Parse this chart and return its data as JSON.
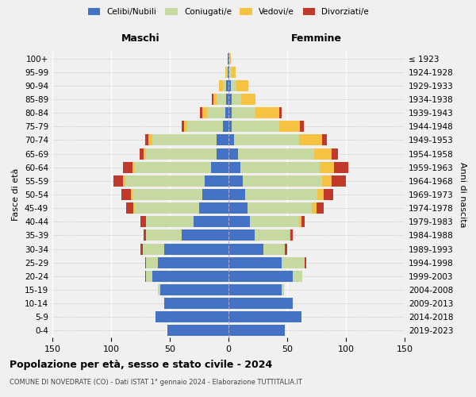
{
  "age_groups": [
    "0-4",
    "5-9",
    "10-14",
    "15-19",
    "20-24",
    "25-29",
    "30-34",
    "35-39",
    "40-44",
    "45-49",
    "50-54",
    "55-59",
    "60-64",
    "65-69",
    "70-74",
    "75-79",
    "80-84",
    "85-89",
    "90-94",
    "95-99",
    "100+"
  ],
  "birth_years": [
    "2019-2023",
    "2014-2018",
    "2009-2013",
    "2004-2008",
    "1999-2003",
    "1994-1998",
    "1989-1993",
    "1984-1988",
    "1979-1983",
    "1974-1978",
    "1969-1973",
    "1964-1968",
    "1959-1963",
    "1954-1958",
    "1949-1953",
    "1944-1948",
    "1939-1943",
    "1934-1938",
    "1929-1933",
    "1924-1928",
    "≤ 1923"
  ],
  "maschi": {
    "celibi": [
      52,
      62,
      55,
      58,
      65,
      60,
      55,
      40,
      30,
      25,
      22,
      20,
      15,
      10,
      10,
      5,
      3,
      2,
      2,
      1,
      1
    ],
    "coniugati": [
      0,
      0,
      0,
      2,
      5,
      10,
      18,
      30,
      40,
      55,
      60,
      68,
      65,
      60,
      55,
      30,
      15,
      8,
      3,
      1,
      0
    ],
    "vedovi": [
      0,
      0,
      0,
      0,
      0,
      0,
      0,
      0,
      0,
      1,
      1,
      2,
      2,
      2,
      3,
      3,
      4,
      3,
      3,
      1,
      0
    ],
    "divorziati": [
      0,
      0,
      0,
      0,
      1,
      1,
      2,
      2,
      5,
      6,
      8,
      8,
      8,
      4,
      3,
      2,
      2,
      1,
      0,
      0,
      0
    ]
  },
  "femmine": {
    "nubili": [
      48,
      62,
      55,
      45,
      55,
      45,
      30,
      22,
      18,
      16,
      14,
      12,
      10,
      8,
      5,
      3,
      3,
      3,
      2,
      1,
      1
    ],
    "coniugate": [
      0,
      0,
      0,
      2,
      8,
      20,
      18,
      30,
      42,
      55,
      62,
      68,
      68,
      65,
      55,
      40,
      20,
      8,
      5,
      2,
      0
    ],
    "vedove": [
      0,
      0,
      0,
      0,
      0,
      0,
      0,
      1,
      2,
      4,
      5,
      8,
      12,
      15,
      20,
      18,
      20,
      12,
      10,
      3,
      1
    ],
    "divorziate": [
      0,
      0,
      0,
      0,
      0,
      1,
      2,
      2,
      3,
      6,
      8,
      12,
      12,
      5,
      4,
      3,
      2,
      0,
      0,
      0,
      0
    ]
  },
  "colors": {
    "celibi": "#4472c4",
    "coniugati": "#c5d9a0",
    "vedovi": "#f5c242",
    "divorziati": "#c0392b"
  },
  "title": "Popolazione per età, sesso e stato civile - 2024",
  "subtitle": "COMUNE DI NOVEDRATE (CO) - Dati ISTAT 1° gennaio 2024 - Elaborazione TUTTITALIA.IT",
  "xlabel_left": "Maschi",
  "xlabel_right": "Femmine",
  "ylabel_left": "Fasce di età",
  "ylabel_right": "Anni di nascita",
  "xlim": 150,
  "legend_labels": [
    "Celibi/Nubili",
    "Coniugati/e",
    "Vedovi/e",
    "Divorziati/e"
  ],
  "background_color": "#f0f0f0"
}
